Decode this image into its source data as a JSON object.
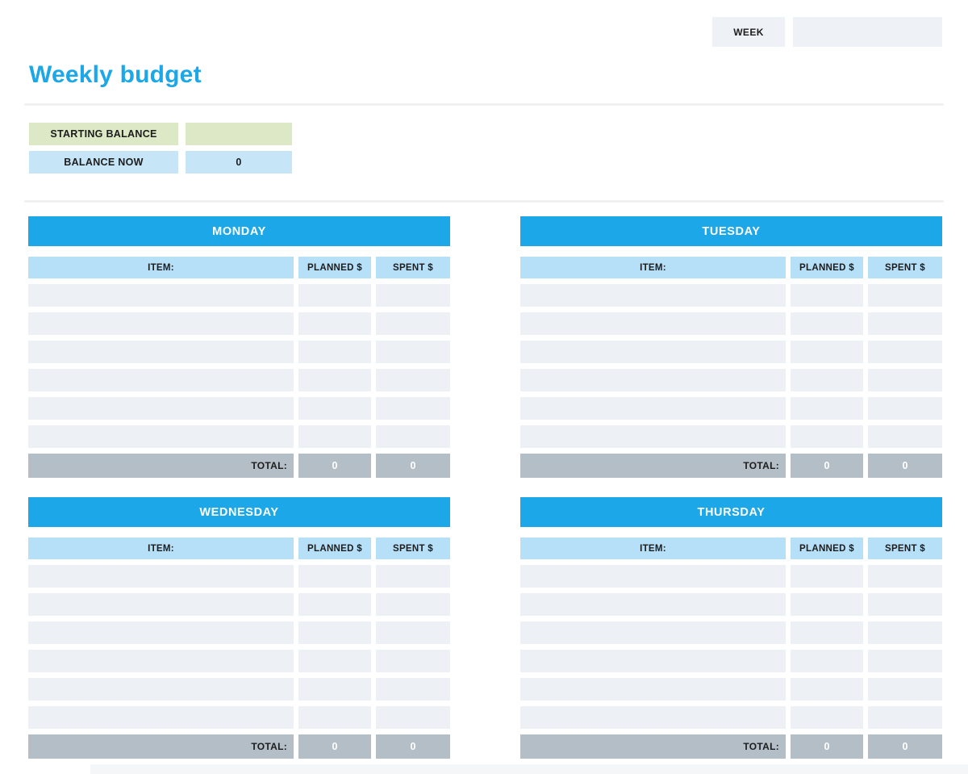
{
  "header": {
    "week_label": "WEEK",
    "week_value": ""
  },
  "title": "Weekly budget",
  "balance": {
    "starting_label": "STARTING BALANCE",
    "starting_value": "",
    "now_label": "BALANCE NOW",
    "now_value": "0"
  },
  "table_config": {
    "item_header": "ITEM:",
    "planned_header": "PLANNED $",
    "spent_header": "SPENT $",
    "total_label": "TOTAL:",
    "rows_per_table": 6
  },
  "tables": [
    {
      "title": "MONDAY",
      "planned_total": "0",
      "spent_total": "0"
    },
    {
      "title": "TUESDAY",
      "planned_total": "0",
      "spent_total": "0"
    },
    {
      "title": "WEDNESDAY",
      "planned_total": "0",
      "spent_total": "0"
    },
    {
      "title": "THURSDAY",
      "planned_total": "0",
      "spent_total": "0"
    }
  ],
  "colors": {
    "accent_blue": "#1ba7e8",
    "column_header_blue": "#b6e0f8",
    "balance_blue": "#c6e6f8",
    "balance_green": "#dde9c6",
    "row_gray": "#edf1f5",
    "total_gray": "#b3bec7",
    "box_gray": "#eef2f6"
  }
}
